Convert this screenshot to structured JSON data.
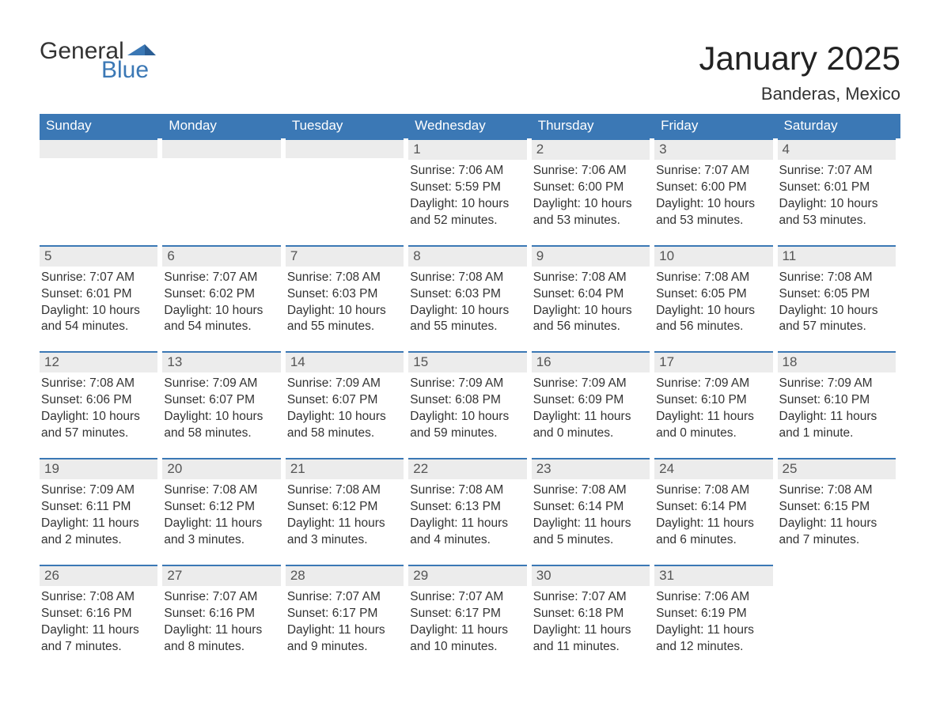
{
  "logo": {
    "general": "General",
    "blue": "Blue"
  },
  "title": "January 2025",
  "location": "Banderas, Mexico",
  "colors": {
    "brand": "#3b78b5",
    "header_text": "#ffffff",
    "daybar_bg": "#ececec",
    "text": "#333333"
  },
  "weekdays": [
    "Sunday",
    "Monday",
    "Tuesday",
    "Wednesday",
    "Thursday",
    "Friday",
    "Saturday"
  ],
  "labels": {
    "sunrise": "Sunrise:",
    "sunset": "Sunset:",
    "daylight": "Daylight:"
  },
  "weeks": [
    [
      null,
      null,
      null,
      {
        "n": "1",
        "sr": "7:06 AM",
        "ss": "5:59 PM",
        "dl": "10 hours and 52 minutes."
      },
      {
        "n": "2",
        "sr": "7:06 AM",
        "ss": "6:00 PM",
        "dl": "10 hours and 53 minutes."
      },
      {
        "n": "3",
        "sr": "7:07 AM",
        "ss": "6:00 PM",
        "dl": "10 hours and 53 minutes."
      },
      {
        "n": "4",
        "sr": "7:07 AM",
        "ss": "6:01 PM",
        "dl": "10 hours and 53 minutes."
      }
    ],
    [
      {
        "n": "5",
        "sr": "7:07 AM",
        "ss": "6:01 PM",
        "dl": "10 hours and 54 minutes."
      },
      {
        "n": "6",
        "sr": "7:07 AM",
        "ss": "6:02 PM",
        "dl": "10 hours and 54 minutes."
      },
      {
        "n": "7",
        "sr": "7:08 AM",
        "ss": "6:03 PM",
        "dl": "10 hours and 55 minutes."
      },
      {
        "n": "8",
        "sr": "7:08 AM",
        "ss": "6:03 PM",
        "dl": "10 hours and 55 minutes."
      },
      {
        "n": "9",
        "sr": "7:08 AM",
        "ss": "6:04 PM",
        "dl": "10 hours and 56 minutes."
      },
      {
        "n": "10",
        "sr": "7:08 AM",
        "ss": "6:05 PM",
        "dl": "10 hours and 56 minutes."
      },
      {
        "n": "11",
        "sr": "7:08 AM",
        "ss": "6:05 PM",
        "dl": "10 hours and 57 minutes."
      }
    ],
    [
      {
        "n": "12",
        "sr": "7:08 AM",
        "ss": "6:06 PM",
        "dl": "10 hours and 57 minutes."
      },
      {
        "n": "13",
        "sr": "7:09 AM",
        "ss": "6:07 PM",
        "dl": "10 hours and 58 minutes."
      },
      {
        "n": "14",
        "sr": "7:09 AM",
        "ss": "6:07 PM",
        "dl": "10 hours and 58 minutes."
      },
      {
        "n": "15",
        "sr": "7:09 AM",
        "ss": "6:08 PM",
        "dl": "10 hours and 59 minutes."
      },
      {
        "n": "16",
        "sr": "7:09 AM",
        "ss": "6:09 PM",
        "dl": "11 hours and 0 minutes."
      },
      {
        "n": "17",
        "sr": "7:09 AM",
        "ss": "6:10 PM",
        "dl": "11 hours and 0 minutes."
      },
      {
        "n": "18",
        "sr": "7:09 AM",
        "ss": "6:10 PM",
        "dl": "11 hours and 1 minute."
      }
    ],
    [
      {
        "n": "19",
        "sr": "7:09 AM",
        "ss": "6:11 PM",
        "dl": "11 hours and 2 minutes."
      },
      {
        "n": "20",
        "sr": "7:08 AM",
        "ss": "6:12 PM",
        "dl": "11 hours and 3 minutes."
      },
      {
        "n": "21",
        "sr": "7:08 AM",
        "ss": "6:12 PM",
        "dl": "11 hours and 3 minutes."
      },
      {
        "n": "22",
        "sr": "7:08 AM",
        "ss": "6:13 PM",
        "dl": "11 hours and 4 minutes."
      },
      {
        "n": "23",
        "sr": "7:08 AM",
        "ss": "6:14 PM",
        "dl": "11 hours and 5 minutes."
      },
      {
        "n": "24",
        "sr": "7:08 AM",
        "ss": "6:14 PM",
        "dl": "11 hours and 6 minutes."
      },
      {
        "n": "25",
        "sr": "7:08 AM",
        "ss": "6:15 PM",
        "dl": "11 hours and 7 minutes."
      }
    ],
    [
      {
        "n": "26",
        "sr": "7:08 AM",
        "ss": "6:16 PM",
        "dl": "11 hours and 7 minutes."
      },
      {
        "n": "27",
        "sr": "7:07 AM",
        "ss": "6:16 PM",
        "dl": "11 hours and 8 minutes."
      },
      {
        "n": "28",
        "sr": "7:07 AM",
        "ss": "6:17 PM",
        "dl": "11 hours and 9 minutes."
      },
      {
        "n": "29",
        "sr": "7:07 AM",
        "ss": "6:17 PM",
        "dl": "11 hours and 10 minutes."
      },
      {
        "n": "30",
        "sr": "7:07 AM",
        "ss": "6:18 PM",
        "dl": "11 hours and 11 minutes."
      },
      {
        "n": "31",
        "sr": "7:06 AM",
        "ss": "6:19 PM",
        "dl": "11 hours and 12 minutes."
      },
      null
    ]
  ]
}
